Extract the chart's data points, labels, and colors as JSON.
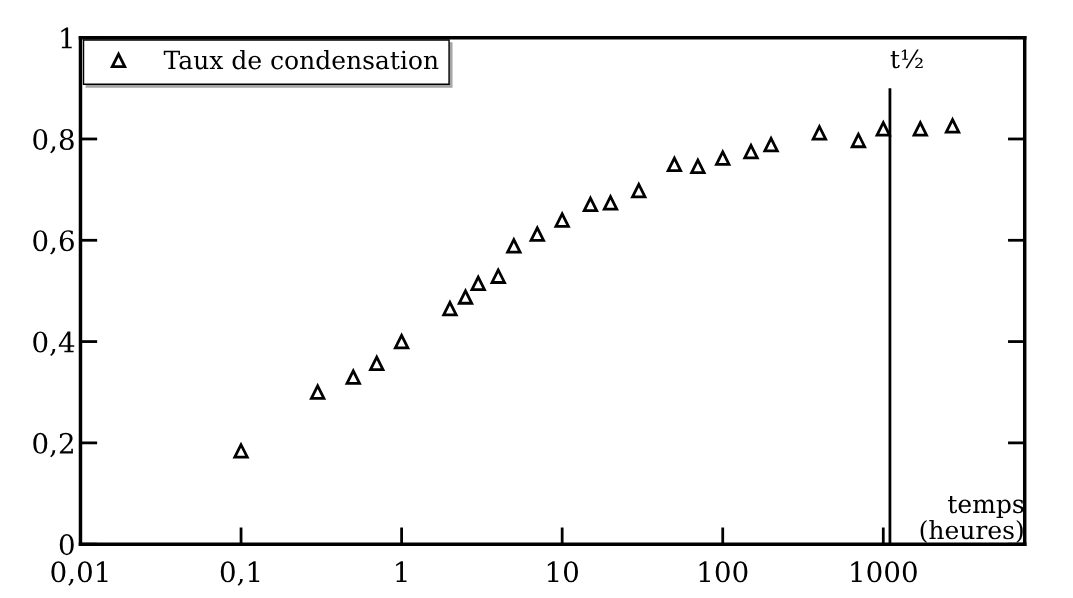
{
  "chart_data": {
    "type": "scatter",
    "xlabel": "temps\n(heures)",
    "log": "x",
    "marker": "triangle",
    "legend": "top left",
    "grid": false,
    "x": [
      0.1,
      0.3,
      0.5,
      0.7,
      1,
      2,
      2.5,
      3,
      4,
      5,
      7,
      10,
      15,
      20,
      30,
      50,
      70,
      100,
      150,
      200,
      400,
      700,
      1000,
      1700,
      2700
    ],
    "series": [
      {
        "name": "Taux de condensation",
        "color": "#000000",
        "values": [
          0.184,
          0.3,
          0.33,
          0.357,
          0.4,
          0.465,
          0.488,
          0.515,
          0.529,
          0.589,
          0.612,
          0.64,
          0.671,
          0.674,
          0.698,
          0.75,
          0.746,
          0.762,
          0.775,
          0.789,
          0.812,
          0.797,
          0.82,
          0.82,
          0.826
        ]
      }
    ],
    "xlim": [
      0.01,
      7600
    ],
    "ylim": [
      0,
      1
    ],
    "xticks": [
      {
        "value": 0.01,
        "label": "0,01"
      },
      {
        "value": 0.1,
        "label": "0,1"
      },
      1,
      10,
      100,
      1000
    ],
    "yticks": [
      0,
      {
        "value": 0.2,
        "label": "0,2"
      },
      {
        "value": 0.4,
        "label": "0,4"
      },
      {
        "value": 0.6,
        "label": "0,6"
      },
      {
        "value": 0.8,
        "label": "0,8"
      },
      1
    ],
    "ref_lines": [
      {
        "axis": "x",
        "value": 1100,
        "label": "t½",
        "color": "#000000"
      }
    ]
  }
}
